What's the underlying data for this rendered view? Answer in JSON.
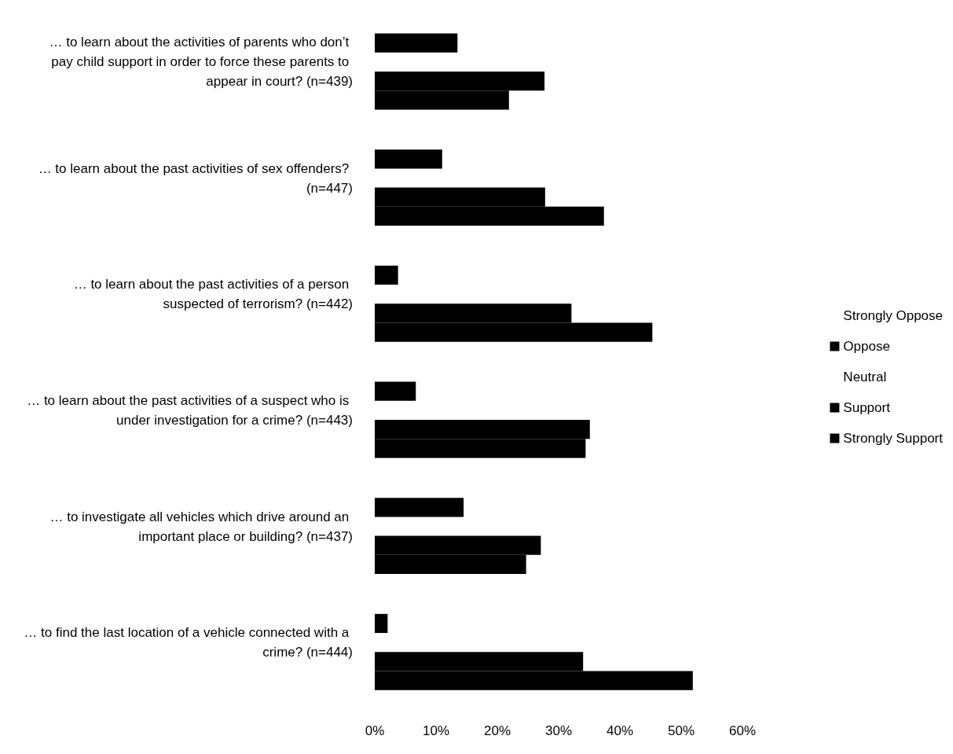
{
  "chart_data": {
    "type": "bar",
    "orientation": "horizontal",
    "categories": [
      "… to learn about the activities of parents who don’t pay child support in order to force these parents to appear in court? (n=439)",
      "… to learn about the past activities of sex offenders? (n=447)",
      "… to learn about the past activities of a person suspected of terrorism? (n=442)",
      "… to learn about the past activities of a suspect who is under investigation for a crime? (n=443)",
      "… to investigate all vehicles which drive around an important place or building? (n=437)",
      "… to find the last location of a vehicle connected with a crime? (n=444)"
    ],
    "series": [
      {
        "name": "Strongly Oppose",
        "values": [
          null,
          null,
          null,
          null,
          null,
          null
        ]
      },
      {
        "name": "Oppose",
        "color": "#000000",
        "values": [
          13.5,
          11,
          3.8,
          6.7,
          14.5,
          2.1
        ]
      },
      {
        "name": "Neutral",
        "values": [
          null,
          null,
          null,
          null,
          null,
          null
        ]
      },
      {
        "name": "Support",
        "color": "#000000",
        "values": [
          27.7,
          27.8,
          32.1,
          35.1,
          27.1,
          34
        ]
      },
      {
        "name": "Strongly Support",
        "color": "#000000",
        "values": [
          21.9,
          37.4,
          45.3,
          34.4,
          24.7,
          51.9
        ]
      }
    ],
    "xlim": [
      0,
      60
    ],
    "xticks": [
      {
        "value": 0,
        "label": "0%"
      },
      {
        "value": 10,
        "label": "10%"
      },
      {
        "value": 20,
        "label": "20%"
      },
      {
        "value": 30,
        "label": "30%"
      },
      {
        "value": 40,
        "label": "40%"
      },
      {
        "value": 50,
        "label": "50%"
      },
      {
        "value": 60,
        "label": "60%"
      }
    ],
    "grid": false,
    "legend": "right"
  }
}
